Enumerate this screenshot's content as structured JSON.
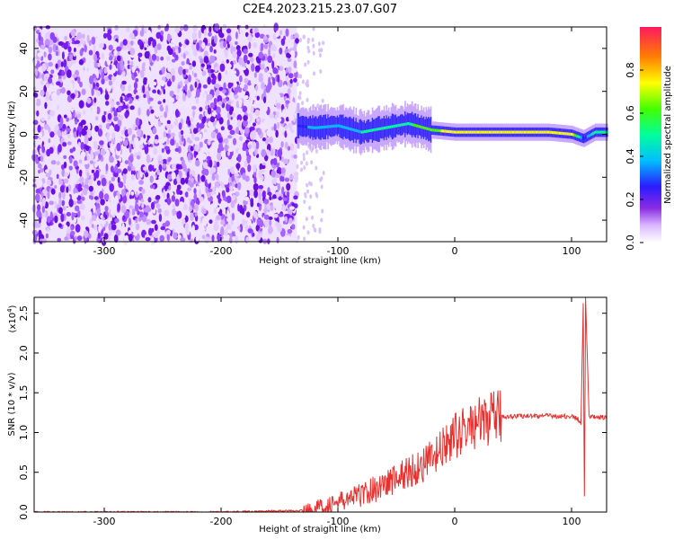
{
  "title": "C2E4.2023.215.23.07.G07",
  "chart_data": [
    {
      "type": "heatmap",
      "name": "spectrogram",
      "xlabel": "Height of straight line (km)",
      "ylabel": "Frequency (Hz)",
      "xlim": [
        -360,
        130
      ],
      "ylim": [
        -50,
        50
      ],
      "x_ticks": [
        -300,
        -200,
        -100,
        0,
        100
      ],
      "x_tick_labels": [
        "-300",
        "-200",
        "-100",
        "0",
        "100"
      ],
      "y_ticks": [
        -40,
        -20,
        0,
        20,
        40
      ],
      "y_tick_labels": [
        "-40",
        "-20",
        "0",
        "20",
        "40"
      ],
      "noise_region_x": [
        -360,
        -135
      ],
      "signal_track": {
        "x": [
          -135,
          -120,
          -100,
          -80,
          -60,
          -40,
          -20,
          0,
          20,
          40,
          60,
          80,
          100,
          110,
          120,
          130
        ],
        "freq_hz": [
          4,
          3,
          4,
          1,
          3,
          5,
          2,
          1,
          1,
          1,
          1,
          1,
          0,
          -2,
          1,
          1
        ],
        "amplitude": [
          0.35,
          0.4,
          0.45,
          0.5,
          0.55,
          0.6,
          0.7,
          0.8,
          0.85,
          0.85,
          0.85,
          0.85,
          0.8,
          0.3,
          0.6,
          0.6
        ]
      },
      "colorbar": {
        "label": "Normalized spectral amplitude",
        "range": [
          0.0,
          1.0
        ],
        "ticks": [
          0.0,
          0.2,
          0.4,
          0.6,
          0.8
        ],
        "tick_labels": [
          "0.0",
          "0.2",
          "0.4",
          "0.6",
          "0.8"
        ]
      }
    },
    {
      "type": "line",
      "name": "snr",
      "xlabel": "Height of straight line (km)",
      "ylabel": "SNR (10 * v/v)",
      "multiplier_label": "(x10",
      "multiplier_exp": "4",
      "xlim": [
        -360,
        130
      ],
      "ylim": [
        0,
        2.7
      ],
      "x_ticks": [
        -300,
        -200,
        -100,
        0,
        100
      ],
      "x_tick_labels": [
        "-300",
        "-200",
        "-100",
        "0",
        "100"
      ],
      "y_ticks": [
        0.0,
        0.5,
        1.0,
        1.5,
        2.0,
        2.5
      ],
      "y_tick_labels": [
        "0.0",
        "0.5",
        "1.0",
        "1.5",
        "2.0",
        "2.5"
      ],
      "color": "#e8312f",
      "x": [
        -360,
        -300,
        -200,
        -130,
        -120,
        -100,
        -80,
        -60,
        -40,
        -20,
        -10,
        0,
        10,
        20,
        30,
        40,
        60,
        80,
        100,
        105,
        108,
        110,
        111,
        112,
        115,
        120,
        130
      ],
      "y": [
        0.0,
        0.0,
        0.0,
        0.02,
        0.05,
        0.12,
        0.22,
        0.35,
        0.5,
        0.65,
        0.8,
        0.95,
        1.05,
        1.12,
        1.17,
        1.2,
        1.21,
        1.21,
        1.2,
        1.18,
        1.1,
        2.6,
        0.2,
        2.7,
        1.2,
        1.19,
        1.19
      ]
    }
  ]
}
